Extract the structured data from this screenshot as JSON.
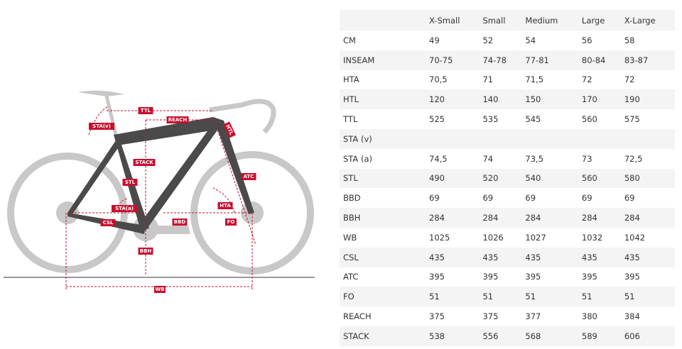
{
  "diagram": {
    "labels": [
      "TTL",
      "REACH",
      "STA(v)",
      "HTL",
      "STACK",
      "STL",
      "ATC",
      "STA(a)",
      "HTA",
      "CSL",
      "BBD",
      "FO",
      "BBH",
      "WB"
    ]
  },
  "table": {
    "columns": [
      "X-Small",
      "Small",
      "Medium",
      "Large",
      "X-Large"
    ],
    "rows": [
      [
        "CM",
        "49",
        "52",
        "54",
        "56",
        "58"
      ],
      [
        "INSEAM",
        "70-75",
        "74-78",
        "77-81",
        "80-84",
        "83-87"
      ],
      [
        "HTA",
        "70,5",
        "71",
        "71,5",
        "72",
        "72"
      ],
      [
        "HTL",
        "120",
        "140",
        "150",
        "170",
        "190"
      ],
      [
        "TTL",
        "525",
        "535",
        "545",
        "560",
        "575"
      ],
      [
        "STA (v)"
      ],
      [
        "STA (a)",
        "74,5",
        "74",
        "73,5",
        "73",
        "72,5"
      ],
      [
        "STL",
        "490",
        "520",
        "540",
        "560",
        "580"
      ],
      [
        "BBD",
        "69",
        "69",
        "69",
        "69",
        "69"
      ],
      [
        "BBH",
        "284",
        "284",
        "284",
        "284",
        "284"
      ],
      [
        "WB",
        "1025",
        "1026",
        "1027",
        "1032",
        "1042"
      ],
      [
        "CSL",
        "435",
        "435",
        "435",
        "435",
        "435"
      ],
      [
        "ATC",
        "395",
        "395",
        "395",
        "395",
        "395"
      ],
      [
        "FO",
        "51",
        "51",
        "51",
        "51",
        "51"
      ],
      [
        "REACH",
        "375",
        "375",
        "377",
        "380",
        "384"
      ],
      [
        "STACK",
        "538",
        "556",
        "568",
        "589",
        "606"
      ]
    ]
  }
}
